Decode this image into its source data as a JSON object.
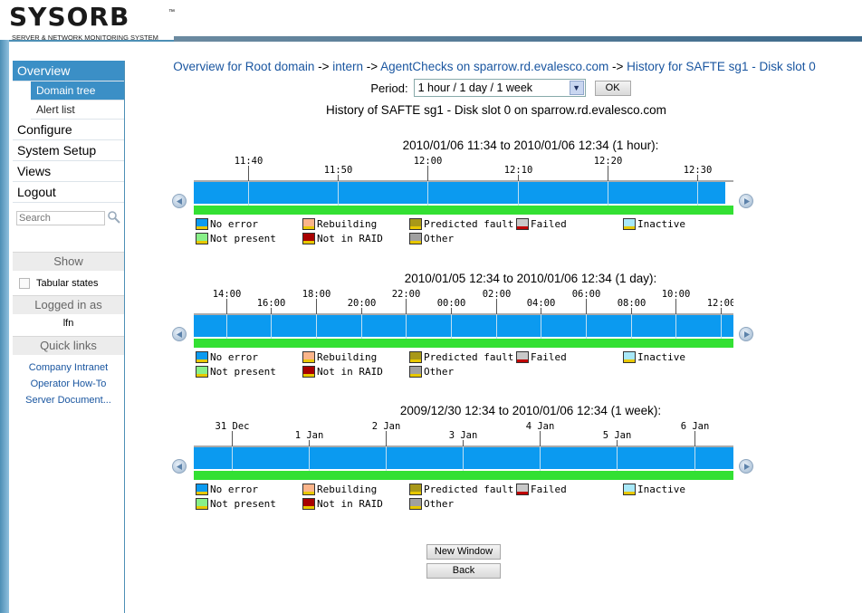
{
  "app": {
    "logo_text": "SYSORB",
    "logo_tm": "™",
    "tagline": "SERVER & NETWORK MONITORING SYSTEM"
  },
  "sidebar": {
    "items": [
      {
        "label": "Overview",
        "active": true
      },
      {
        "label": "Domain tree",
        "sub": true,
        "active": true
      },
      {
        "label": "Alert list",
        "sub": true
      },
      {
        "label": "Configure"
      },
      {
        "label": "System Setup"
      },
      {
        "label": "Views"
      },
      {
        "label": "Logout"
      }
    ],
    "search_placeholder": "Search",
    "show_heading": "Show",
    "tabular_label": "Tabular states",
    "logged_heading": "Logged in as",
    "username": "lfn",
    "quicklinks_heading": "Quick links",
    "quicklinks": [
      "Company Intranet",
      "Operator How-To",
      "Server Document..."
    ]
  },
  "breadcrumb": {
    "items": [
      "Overview for Root domain",
      "intern",
      "AgentChecks on sparrow.rd.evalesco.com",
      "History for SAFTE sg1 - Disk slot 0"
    ],
    "separator": " -> "
  },
  "period": {
    "label": "Period:",
    "selected": "1 hour / 1 day / 1 week",
    "ok_label": "OK"
  },
  "subtitle": "History of SAFTE sg1 - Disk slot 0 on sparrow.rd.evalesco.com",
  "legend": [
    {
      "label": "No error",
      "color": "#0b9af0",
      "mark": true
    },
    {
      "label": "Rebuilding",
      "color": "#fbb48a",
      "mark": true
    },
    {
      "label": "Predicted fault",
      "color": "#a89818",
      "mark": true
    },
    {
      "label": "Failed",
      "color": "#c8c8c8",
      "mark": "red"
    },
    {
      "label": "Inactive",
      "color": "#a8e8f8",
      "mark": true
    },
    {
      "label": "Not present",
      "color": "#88f088",
      "mark": true
    },
    {
      "label": "Not in RAID",
      "color": "#a80000",
      "mark": true
    },
    {
      "label": "Other",
      "color": "#a0a0a0",
      "mark": true
    }
  ],
  "timelines": [
    {
      "title": "2010/01/06 11:34 to 2010/01/06 12:34 (1 hour):",
      "range": [
        "2010/01/06 11:34",
        "2010/01/06 12:34"
      ],
      "ticks": [
        {
          "label": "11:40",
          "at": 0.1,
          "row": 0
        },
        {
          "label": "11:50",
          "at": 0.2667,
          "row": 1
        },
        {
          "label": "12:00",
          "at": 0.4333,
          "row": 0
        },
        {
          "label": "12:10",
          "at": 0.6,
          "row": 1
        },
        {
          "label": "12:20",
          "at": 0.7667,
          "row": 0
        },
        {
          "label": "12:30",
          "at": 0.9333,
          "row": 1
        }
      ],
      "states": [
        {
          "state": "No error",
          "from": 0,
          "to": 1
        }
      ],
      "bar_extent": 0.985
    },
    {
      "title": "2010/01/05 12:34 to 2010/01/06 12:34 (1 day):",
      "range": [
        "2010/01/05 12:34",
        "2010/01/06 12:34"
      ],
      "ticks": [
        {
          "label": "14:00",
          "at": 0.0597,
          "row": 0
        },
        {
          "label": "16:00",
          "at": 0.1431,
          "row": 1
        },
        {
          "label": "18:00",
          "at": 0.2264,
          "row": 0
        },
        {
          "label": "20:00",
          "at": 0.3097,
          "row": 1
        },
        {
          "label": "22:00",
          "at": 0.3931,
          "row": 0
        },
        {
          "label": "00:00",
          "at": 0.4764,
          "row": 1
        },
        {
          "label": "02:00",
          "at": 0.5597,
          "row": 0
        },
        {
          "label": "04:00",
          "at": 0.6431,
          "row": 1
        },
        {
          "label": "06:00",
          "at": 0.7264,
          "row": 0
        },
        {
          "label": "08:00",
          "at": 0.8097,
          "row": 1
        },
        {
          "label": "10:00",
          "at": 0.8931,
          "row": 0
        },
        {
          "label": "12:00",
          "at": 0.9764,
          "row": 1
        }
      ],
      "states": [
        {
          "state": "No error",
          "from": 0,
          "to": 1
        }
      ],
      "bar_extent": 1.0
    },
    {
      "title": "2009/12/30 12:34 to 2010/01/06 12:34 (1 week):",
      "range": [
        "2009/12/30 12:34",
        "2010/01/06 12:34"
      ],
      "ticks": [
        {
          "label": "31 Dec",
          "at": 0.07,
          "row": 0
        },
        {
          "label": "1 Jan",
          "at": 0.2129,
          "row": 1
        },
        {
          "label": "2 Jan",
          "at": 0.3557,
          "row": 0
        },
        {
          "label": "3 Jan",
          "at": 0.4986,
          "row": 1
        },
        {
          "label": "4 Jan",
          "at": 0.6414,
          "row": 0
        },
        {
          "label": "5 Jan",
          "at": 0.7843,
          "row": 1
        },
        {
          "label": "6 Jan",
          "at": 0.9271,
          "row": 0
        }
      ],
      "states": [
        {
          "state": "No error",
          "from": 0,
          "to": 1
        }
      ],
      "bar_extent": 1.0
    }
  ],
  "buttons": {
    "new_window": "New Window",
    "back": "Back"
  }
}
